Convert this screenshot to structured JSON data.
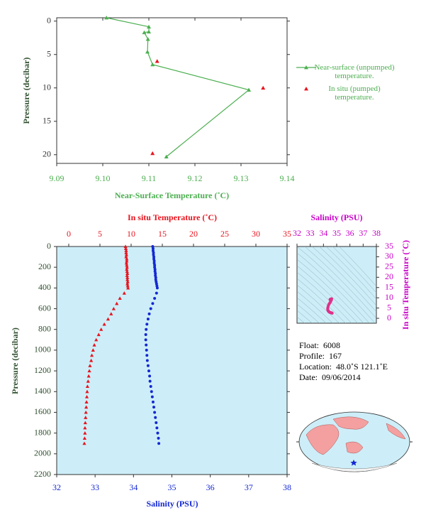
{
  "chart_data": [
    {
      "type": "near_surface",
      "xlabel": "Near-Surface Temperature (˚C)",
      "ylabel": "Pressure (decibar)",
      "xlim": [
        9.09,
        9.14
      ],
      "xticks": [
        9.09,
        {
          "value": 9.1,
          "label": "9.10"
        },
        9.11,
        9.12,
        9.13,
        9.14
      ],
      "ylim": [
        -0.5,
        21.3
      ],
      "yticks": [
        0,
        5,
        10,
        15,
        20
      ],
      "y_inverted": true,
      "legend": "right",
      "series": [
        {
          "name": "Near-surface (unpumped) temperature.",
          "color": "#4caf50",
          "line": true,
          "x": [
            9.1008,
            9.11,
            9.11,
            9.109,
            9.1098,
            9.1097,
            9.1108,
            9.1317,
            9.1138
          ],
          "y": [
            -0.5,
            0.85,
            1.6,
            1.7,
            2.7,
            4.6,
            6.5,
            10.3,
            20.3
          ]
        },
        {
          "name": "In situ (pumped) temperature.",
          "color": "#e8141e",
          "line": false,
          "x": [
            9.1118,
            9.1348,
            9.1108
          ],
          "y": [
            6.0,
            10.0,
            19.8
          ]
        }
      ]
    },
    {
      "type": "profile",
      "ylabel": "Pressure (decibar)",
      "xlabel": "Salinity (PSU)",
      "x2label": "In situ Temperature (˚C)",
      "ylim": [
        0,
        2200
      ],
      "yticks": [
        0,
        200,
        400,
        600,
        800,
        1000,
        1200,
        1400,
        1600,
        1800,
        2000,
        2200
      ],
      "y_inverted": true,
      "xlim": [
        32,
        38
      ],
      "xticks": [
        32,
        33,
        34,
        35,
        36,
        37,
        38
      ],
      "x2lim": [
        -1.93,
        35
      ],
      "x2ticks": [
        0,
        5,
        10,
        15,
        20,
        25,
        30,
        35
      ],
      "background": "#cdeef8",
      "pressure": [
        0,
        20,
        40,
        60,
        80,
        100,
        120,
        140,
        160,
        180,
        200,
        220,
        240,
        260,
        280,
        300,
        320,
        340,
        360,
        380,
        400,
        450,
        500,
        550,
        600,
        650,
        700,
        750,
        800,
        850,
        900,
        950,
        1000,
        1050,
        1100,
        1150,
        1200,
        1250,
        1300,
        1350,
        1400,
        1450,
        1500,
        1550,
        1600,
        1650,
        1700,
        1750,
        1800,
        1850,
        1900
      ],
      "series": [
        {
          "color": "#e8141e",
          "axis": "x2",
          "marker": "triangle",
          "values": [
            9.1,
            9.15,
            9.2,
            9.2,
            9.25,
            9.2,
            9.3,
            9.3,
            9.25,
            9.3,
            9.35,
            9.3,
            9.35,
            9.4,
            9.35,
            9.4,
            9.4,
            9.45,
            9.4,
            9.45,
            9.5,
            8.9,
            8.2,
            7.7,
            7.2,
            6.8,
            6.3,
            5.7,
            5.2,
            4.8,
            4.4,
            4.1,
            3.9,
            3.7,
            3.6,
            3.4,
            3.3,
            3.2,
            3.1,
            3.0,
            2.95,
            2.9,
            2.85,
            2.8,
            2.75,
            2.7,
            2.65,
            2.6,
            2.6,
            2.55,
            2.5
          ]
        },
        {
          "color": "#1428d2",
          "axis": "x",
          "marker": "circle",
          "values": [
            34.5,
            34.51,
            34.51,
            34.52,
            34.52,
            34.53,
            34.53,
            34.54,
            34.54,
            34.55,
            34.55,
            34.56,
            34.56,
            34.57,
            34.57,
            34.58,
            34.58,
            34.59,
            34.6,
            34.61,
            34.62,
            34.6,
            34.55,
            34.5,
            34.45,
            34.41,
            34.38,
            34.35,
            34.33,
            34.32,
            34.32,
            34.33,
            34.34,
            34.35,
            34.36,
            34.38,
            34.4,
            34.42,
            34.43,
            34.45,
            34.47,
            34.49,
            34.51,
            34.53,
            34.55,
            34.57,
            34.59,
            34.61,
            34.63,
            34.65,
            34.66
          ]
        }
      ]
    },
    {
      "type": "ts",
      "title": "Salinity (PSU)",
      "ylabel": "In situ Temperature (˚C)",
      "xlim": [
        32,
        38
      ],
      "xticks": [
        32,
        33,
        34,
        35,
        36,
        37,
        38
      ],
      "ylim": [
        -2.4,
        35
      ],
      "yticks": [
        0,
        5,
        10,
        15,
        20,
        25,
        30,
        35
      ],
      "color": "#e0308a",
      "axis_color": "#c800c8"
    }
  ],
  "info": [
    {
      "label": "Float:",
      "value": "6008"
    },
    {
      "label": "Profile:",
      "value": "167"
    },
    {
      "label": "Location:",
      "value": "48.0˚S  121.1˚E"
    },
    {
      "label": "Date:",
      "value": "09/06/2014"
    }
  ]
}
